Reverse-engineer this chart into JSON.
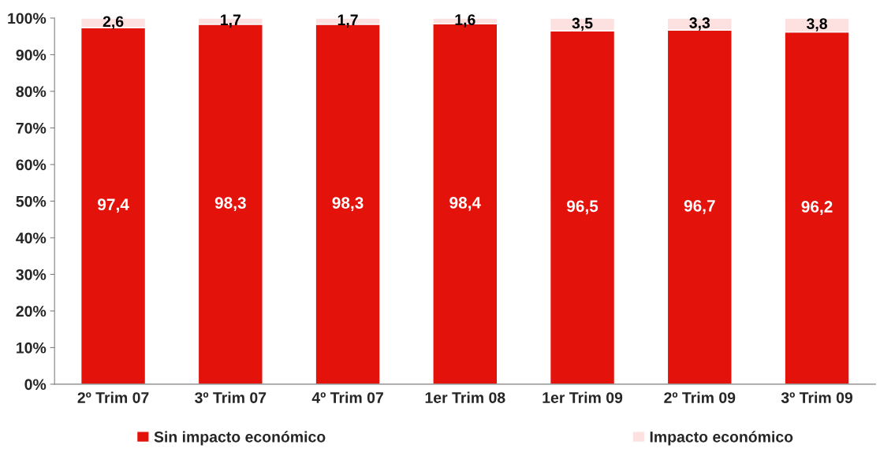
{
  "chart_data": {
    "type": "bar",
    "stacked": true,
    "categories": [
      "2º Trim 07",
      "3º Trim 07",
      "4º Trim 07",
      "1er Trim 08",
      "1er Trim 09",
      "2º Trim 09",
      "3º Trim 09"
    ],
    "series": [
      {
        "name": "Sin impacto económico",
        "color": "#e3120b",
        "values": [
          97.4,
          98.3,
          98.3,
          98.4,
          96.5,
          96.7,
          96.2
        ],
        "value_labels": [
          "97,4",
          "98,3",
          "98,3",
          "98,4",
          "96,5",
          "96,7",
          "96,2"
        ]
      },
      {
        "name": "Impacto económico",
        "color": "#fde0e0",
        "values": [
          2.6,
          1.7,
          1.7,
          1.6,
          3.5,
          3.3,
          3.8
        ],
        "value_labels": [
          "2,6",
          "1,7",
          "1,7",
          "1,6",
          "3,5",
          "3,3",
          "3,8"
        ]
      }
    ],
    "ylim": [
      0,
      100
    ],
    "yticks": [
      {
        "value": 0,
        "label": "0%"
      },
      {
        "value": 10,
        "label": "10%"
      },
      {
        "value": 20,
        "label": "20%"
      },
      {
        "value": 30,
        "label": "30%"
      },
      {
        "value": 40,
        "label": "40%"
      },
      {
        "value": 50,
        "label": "50%"
      },
      {
        "value": 60,
        "label": "60%"
      },
      {
        "value": 70,
        "label": "70%"
      },
      {
        "value": 80,
        "label": "80%"
      },
      {
        "value": 90,
        "label": "90%"
      },
      {
        "value": 100,
        "label": "100%"
      }
    ],
    "grid": false,
    "legend": "bottom"
  }
}
